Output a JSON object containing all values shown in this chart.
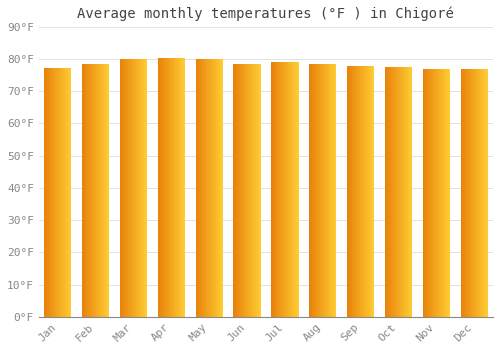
{
  "title": "Average monthly temperatures (°F ) in Chigoré",
  "months": [
    "Jan",
    "Feb",
    "Mar",
    "Apr",
    "May",
    "Jun",
    "Jul",
    "Aug",
    "Sep",
    "Oct",
    "Nov",
    "Dec"
  ],
  "values": [
    77.2,
    78.3,
    80.1,
    80.2,
    80.1,
    78.6,
    79.2,
    78.6,
    77.7,
    77.5,
    77.0,
    76.8
  ],
  "ylim": [
    0,
    90
  ],
  "yticks": [
    0,
    10,
    20,
    30,
    40,
    50,
    60,
    70,
    80,
    90
  ],
  "bar_color_left": "#E8820A",
  "bar_color_right": "#FFCC33",
  "background_color": "#ffffff",
  "grid_color": "#dddddd",
  "title_fontsize": 10,
  "tick_fontsize": 8,
  "bar_width": 0.72
}
